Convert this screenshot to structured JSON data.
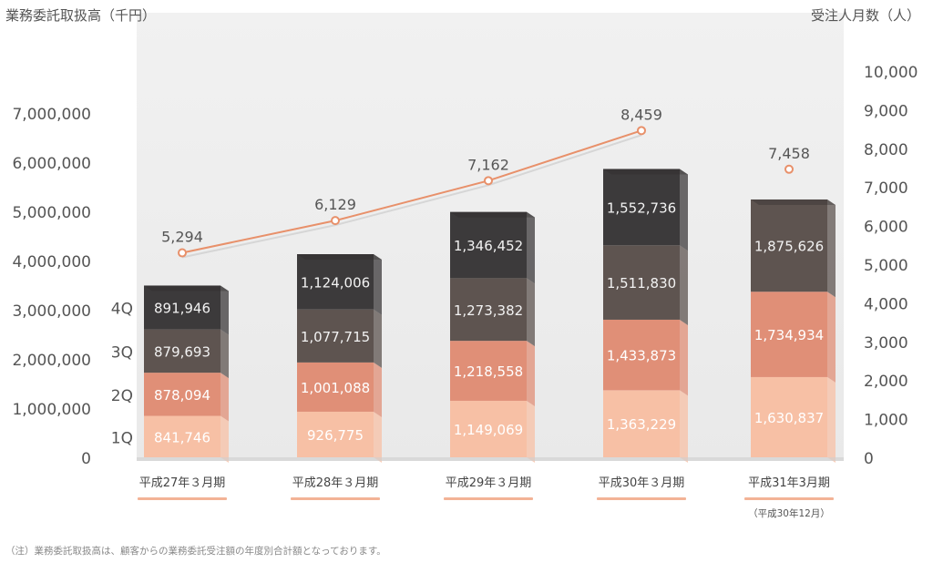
{
  "left_axis_title": "業務委託取扱高（千円）",
  "right_axis_title": "受注人月数（人）",
  "note": "（注）業務委託取扱高は、顧客からの業務委託受注額の年度別合計額となっております。",
  "chart_data": {
    "type": "bar",
    "stacked": true,
    "categories": [
      "平成27年３月期",
      "平成28年３月期",
      "平成29年３月期",
      "平成30年３月期",
      "平成31年3月期"
    ],
    "category_notes": [
      "",
      "",
      "",
      "",
      "（平成30年12月）"
    ],
    "series": [
      {
        "name": "1Q",
        "color": "#f7c0a5",
        "values": [
          841746,
          926775,
          1149069,
          1363229,
          1630837
        ]
      },
      {
        "name": "2Q",
        "color": "#e08f77",
        "values": [
          878094,
          1001088,
          1218558,
          1433873,
          1734934
        ]
      },
      {
        "name": "3Q",
        "color": "#5e5450",
        "values": [
          879693,
          1077715,
          1273382,
          1511830,
          1875626
        ]
      },
      {
        "name": "4Q",
        "color": "#3c3a3b",
        "values": [
          891946,
          1124006,
          1346452,
          1552736,
          null
        ]
      }
    ],
    "value_labels": [
      [
        "841,746",
        "878,094",
        "879,693",
        "891,946"
      ],
      [
        "926,775",
        "1,001,088",
        "1,077,715",
        "1,124,006"
      ],
      [
        "1,149,069",
        "1,218,558",
        "1,273,382",
        "1,346,452"
      ],
      [
        "1,363,229",
        "1,433,873",
        "1,511,830",
        "1,552,736"
      ],
      [
        "1,630,837",
        "1,734,934",
        "1,875,626",
        ""
      ]
    ],
    "line": {
      "name": "受注人月数",
      "color": "#e8906a",
      "values": [
        5294,
        6129,
        7162,
        8459,
        7458
      ],
      "labels": [
        "5,294",
        "6,129",
        "7,162",
        "8,459",
        "7,458"
      ],
      "connected": [
        true,
        true,
        true,
        true,
        false
      ]
    },
    "y_left": {
      "min": 0,
      "max": 7000000,
      "ticks": [
        "0",
        "1,000,000",
        "2,000,000",
        "3,000,000",
        "4,000,000",
        "5,000,000",
        "6,000,000",
        "7,000,000"
      ]
    },
    "y_right": {
      "min": 0,
      "max": 10000,
      "ticks": [
        "0",
        "1,000",
        "2,000",
        "3,000",
        "4,000",
        "5,000",
        "6,000",
        "7,000",
        "8,000",
        "9,000",
        "10,000"
      ]
    },
    "legend": [
      "1Q",
      "2Q",
      "3Q",
      "4Q"
    ]
  }
}
